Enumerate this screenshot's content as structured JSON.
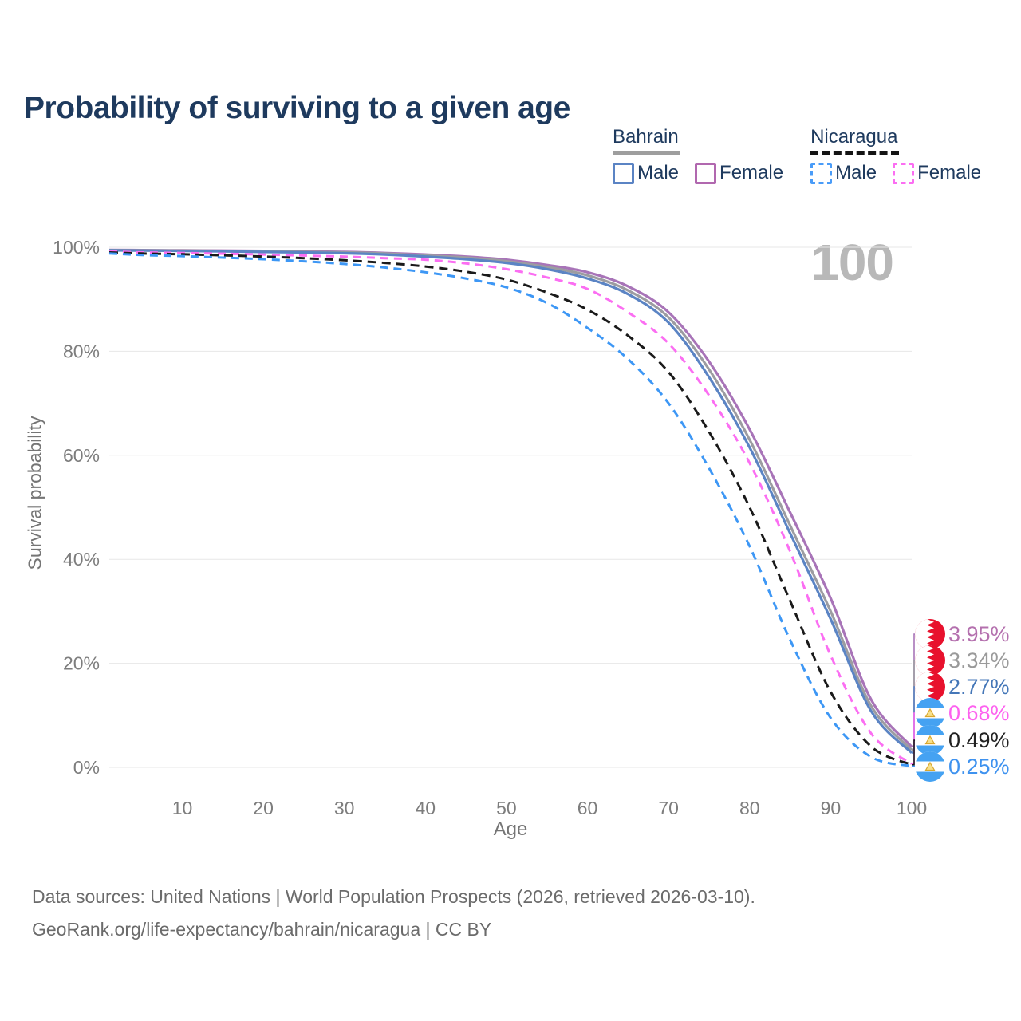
{
  "title": "Probability of surviving to a given age",
  "watermark": "100",
  "legend": {
    "groups": [
      {
        "country": "Bahrain",
        "line_style": "solid",
        "underline_color": "#9e9e9e",
        "items": [
          {
            "label": "Male",
            "color": "#5b84c4"
          },
          {
            "label": "Female",
            "color": "#b168af"
          }
        ]
      },
      {
        "country": "Nicaragua",
        "line_style": "dashed",
        "underline_color": "#141414",
        "items": [
          {
            "label": "Male",
            "color": "#4a9cf8"
          },
          {
            "label": "Female",
            "color": "#fb6ef2"
          }
        ]
      }
    ]
  },
  "chart_data": {
    "type": "line",
    "title": "Probability of surviving to a given age",
    "xlabel": "Age",
    "ylabel": "Survival probability",
    "xlim": [
      1,
      100
    ],
    "ylim": [
      0,
      100
    ],
    "grid": true,
    "legend_position": "top-right",
    "age_cursor": "100",
    "x_ticks": [
      10,
      20,
      30,
      40,
      50,
      60,
      70,
      80,
      90,
      100
    ],
    "y_ticks": [
      {
        "value": 0,
        "label": "0%"
      },
      {
        "value": 20,
        "label": "20%"
      },
      {
        "value": 40,
        "label": "40%"
      },
      {
        "value": 60,
        "label": "60%"
      },
      {
        "value": 80,
        "label": "80%"
      },
      {
        "value": 100,
        "label": "100%"
      }
    ],
    "ages": [
      1,
      5,
      10,
      15,
      20,
      25,
      30,
      35,
      40,
      45,
      50,
      55,
      60,
      65,
      70,
      75,
      80,
      85,
      90,
      95,
      100
    ],
    "series": [
      {
        "name": "Bahrain Female",
        "country": "Bahrain",
        "sex": "Female",
        "color": "#a874b8",
        "dashed": false,
        "flag": "bahrain",
        "end_label": "3.95%",
        "end_label_color": "#b470ae",
        "values": [
          99.5,
          99.45,
          99.4,
          99.35,
          99.3,
          99.2,
          99.1,
          98.9,
          98.6,
          98.2,
          97.6,
          96.6,
          95.2,
          92.5,
          87.5,
          78.0,
          65.0,
          49.0,
          32.5,
          13.0,
          3.95
        ]
      },
      {
        "name": "Bahrain Both sexes",
        "country": "Bahrain",
        "sex": "Both",
        "color": "#9c9ca1",
        "dashed": false,
        "flag": "bahrain",
        "end_label": "3.34%",
        "end_label_color": "#9a9a9a",
        "values": [
          99.45,
          99.4,
          99.35,
          99.3,
          99.2,
          99.1,
          99.0,
          98.8,
          98.4,
          98.0,
          97.3,
          96.2,
          94.6,
          91.7,
          86.5,
          76.5,
          63.0,
          46.5,
          30.0,
          11.8,
          3.34
        ]
      },
      {
        "name": "Bahrain Male",
        "country": "Bahrain",
        "sex": "Male",
        "color": "#5b84c4",
        "dashed": false,
        "flag": "bahrain",
        "end_label": "2.77%",
        "end_label_color": "#4577b8",
        "values": [
          99.4,
          99.35,
          99.3,
          99.2,
          99.1,
          99.0,
          98.85,
          98.6,
          98.2,
          97.7,
          97.0,
          95.8,
          94.0,
          91.0,
          85.5,
          75.0,
          61.5,
          45.0,
          28.5,
          10.8,
          2.77
        ]
      },
      {
        "name": "Nicaragua Female",
        "country": "Nicaragua",
        "sex": "Female",
        "color": "#fb6ef2",
        "dashed": true,
        "flag": "nicaragua",
        "end_label": "0.68%",
        "end_label_color": "#fd61ef",
        "values": [
          99.2,
          99.0,
          98.9,
          98.75,
          98.6,
          98.4,
          98.2,
          97.9,
          97.6,
          96.9,
          95.8,
          94.2,
          92.0,
          87.5,
          81.5,
          71.5,
          58.5,
          41.5,
          21.5,
          6.5,
          0.68
        ]
      },
      {
        "name": "Nicaragua Both sexes",
        "country": "Nicaragua",
        "sex": "Both",
        "color": "#1a1a1a",
        "dashed": true,
        "flag": "nicaragua",
        "end_label": "0.49%",
        "end_label_color": "#222222",
        "values": [
          99.0,
          98.8,
          98.65,
          98.45,
          98.2,
          97.9,
          97.5,
          97.0,
          96.3,
          95.3,
          93.8,
          91.3,
          88.0,
          83.0,
          76.0,
          64.5,
          50.0,
          32.0,
          14.5,
          4.0,
          0.49
        ]
      },
      {
        "name": "Nicaragua Male",
        "country": "Nicaragua",
        "sex": "Male",
        "color": "#3d97f5",
        "dashed": true,
        "flag": "nicaragua",
        "end_label": "0.25%",
        "end_label_color": "#3e92ef",
        "values": [
          98.8,
          98.5,
          98.3,
          98.0,
          97.7,
          97.3,
          96.8,
          96.1,
          95.2,
          94.0,
          92.3,
          89.3,
          84.5,
          78.5,
          70.0,
          57.5,
          42.5,
          24.5,
          9.5,
          2.0,
          0.25
        ]
      }
    ]
  },
  "footer": {
    "line1": "Data sources: United Nations | World Population Prospects (2026, retrieved 2026-03-10).",
    "line2": "GeoRank.org/life-expectancy/bahrain/nicaragua | CC BY"
  }
}
